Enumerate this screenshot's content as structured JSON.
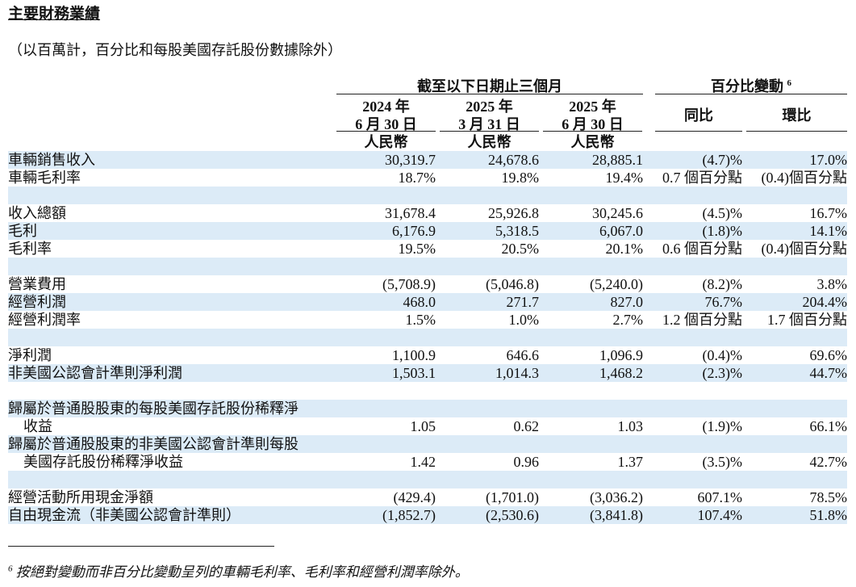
{
  "header": {
    "title": "主要財務業績",
    "subtitle": "（以百萬計，百分比和每股美國存託股份數據除外）"
  },
  "table": {
    "group_header": "截至以下日期止三個月",
    "change_header": "百分比變動",
    "change_note": "6",
    "columns": [
      {
        "year": "2024 年",
        "date": "6 月 30 日",
        "currency": "人民幣"
      },
      {
        "year": "2025 年",
        "date": "3 月 31 日",
        "currency": "人民幣"
      },
      {
        "year": "2025 年",
        "date": "6 月 30 日",
        "currency": "人民幣"
      }
    ],
    "change_columns": [
      "同比",
      "環比"
    ],
    "sections": [
      [
        {
          "label": [
            "車輛銷售收入"
          ],
          "values": [
            "30,319.7",
            "24,678.6",
            "28,885.1",
            "(4.7)%",
            "17.0%"
          ]
        },
        {
          "label": [
            "車輛毛利率"
          ],
          "values": [
            "18.7%",
            "19.8%",
            "19.4%",
            "0.7 個百分點",
            "(0.4)個百分點"
          ]
        }
      ],
      [
        {
          "label": [
            "收入總額"
          ],
          "values": [
            "31,678.4",
            "25,926.8",
            "30,245.6",
            "(4.5)%",
            "16.7%"
          ]
        },
        {
          "label": [
            "毛利"
          ],
          "values": [
            "6,176.9",
            "5,318.5",
            "6,067.0",
            "(1.8)%",
            "14.1%"
          ]
        },
        {
          "label": [
            "毛利率"
          ],
          "values": [
            "19.5%",
            "20.5%",
            "20.1%",
            "0.6 個百分點",
            "(0.4)個百分點"
          ]
        }
      ],
      [
        {
          "label": [
            "營業費用"
          ],
          "values": [
            "(5,708.9)",
            "(5,046.8)",
            "(5,240.0)",
            "(8.2)%",
            "3.8%"
          ]
        },
        {
          "label": [
            "經營利潤"
          ],
          "values": [
            "468.0",
            "271.7",
            "827.0",
            "76.7%",
            "204.4%"
          ]
        },
        {
          "label": [
            "經營利潤率"
          ],
          "values": [
            "1.5%",
            "1.0%",
            "2.7%",
            "1.2 個百分點",
            "1.7 個百分點"
          ]
        }
      ],
      [
        {
          "label": [
            "淨利潤"
          ],
          "values": [
            "1,100.9",
            "646.6",
            "1,096.9",
            "(0.4)%",
            "69.6%"
          ]
        },
        {
          "label": [
            "非美國公認會計準則淨利潤"
          ],
          "values": [
            "1,503.1",
            "1,014.3",
            "1,468.2",
            "(2.3)%",
            "44.7%"
          ]
        }
      ],
      [
        {
          "label": [
            "歸屬於普通股股東的每股美國存託股份稀釋淨",
            "收益"
          ],
          "values": [
            "1.05",
            "0.62",
            "1.03",
            "(1.9)%",
            "66.1%"
          ]
        },
        {
          "label": [
            "歸屬於普通股股東的非美國公認會計準則每股",
            "美國存託股份稀釋淨收益"
          ],
          "values": [
            "1.42",
            "0.96",
            "1.37",
            "(3.5)%",
            "42.7%"
          ]
        }
      ],
      [
        {
          "label": [
            "經營活動所用現金淨額"
          ],
          "values": [
            "(429.4)",
            "(1,701.0)",
            "(3,036.2)",
            "607.1%",
            "78.5%"
          ]
        },
        {
          "label": [
            "自由現金流（非美國公認會計準則）"
          ],
          "values": [
            "(1,852.7)",
            "(2,530.6)",
            "(3,841.8)",
            "107.4%",
            "51.8%"
          ]
        }
      ]
    ]
  },
  "footnote": {
    "marker": "6",
    "text": "按絕對變動而非百分比變動呈列的車輛毛利率、毛利率和經營利潤率除外。"
  }
}
